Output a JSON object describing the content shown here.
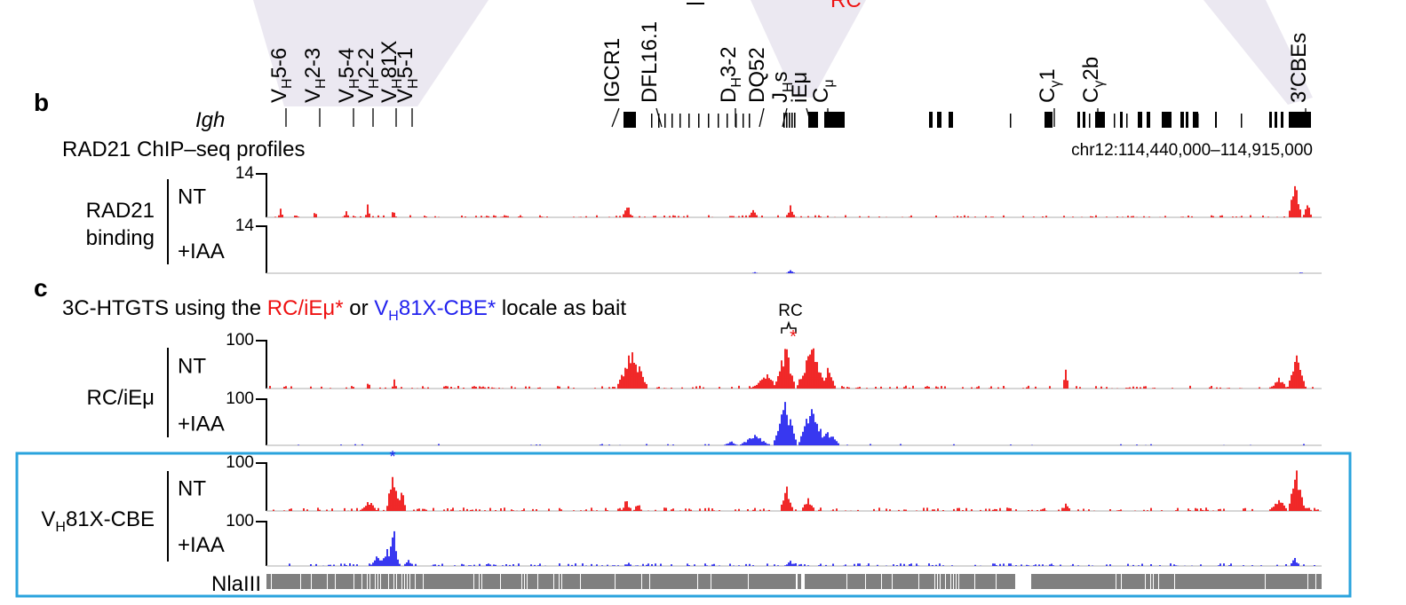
{
  "top_red_text": "RC",
  "panel_b": {
    "letter": "b",
    "locus_label": "Igh",
    "features": [
      {
        "label": "VH5-6",
        "main": "V",
        "sub": "H",
        "rest": "5-6"
      },
      {
        "label": "VH2-3",
        "main": "V",
        "sub": "H",
        "rest": "2-3"
      },
      {
        "label": "VH5-4",
        "main": "V",
        "sub": "H",
        "rest": "5-4"
      },
      {
        "label": "VH2-2",
        "main": "V",
        "sub": "H",
        "rest": "2-2"
      },
      {
        "label": "VH81X",
        "main": "V",
        "sub": "H",
        "rest": "81X"
      },
      {
        "label": "VH5-1",
        "main": "V",
        "sub": "H",
        "rest": "5-1"
      },
      {
        "label": "IGCR1",
        "main": "IGCR1",
        "sub": "",
        "rest": ""
      },
      {
        "label": "DFL16.1",
        "main": "DFL16.1",
        "sub": "",
        "rest": ""
      },
      {
        "label": "DH3-2",
        "main": "D",
        "sub": "H",
        "rest": "3-2"
      },
      {
        "label": "DQ52",
        "main": "DQ52",
        "sub": "",
        "rest": ""
      },
      {
        "label": "JHs",
        "main": "J",
        "sub": "H",
        "rest": "s"
      },
      {
        "label": "iEμ",
        "main": "iEμ",
        "sub": "",
        "rest": ""
      },
      {
        "label": "Cμ",
        "main": "C",
        "sub": "μ",
        "rest": ""
      },
      {
        "label": "Cγ1",
        "main": "C",
        "sub": "γ",
        "rest": "1"
      },
      {
        "label": "Cγ2b",
        "main": "C",
        "sub": "γ",
        "rest": "2b"
      },
      {
        "label": "3'CBEs",
        "main": "3′CBEs",
        "sub": "",
        "rest": ""
      }
    ],
    "section_title": "RAD21 ChIP–seq profiles",
    "coordinates": "chr12:114,440,000–114,915,000",
    "group_label_line1": "RAD21",
    "group_label_line2": "binding",
    "tracks": [
      {
        "label": "NT",
        "max": "14",
        "color": "#ee1111"
      },
      {
        "label": "+IAA",
        "max": "14",
        "color": "#2222ee"
      }
    ]
  },
  "panel_c": {
    "letter": "c",
    "title_pre": "3C-HTGTS using the ",
    "title_red": "RC/iEμ*",
    "title_mid": " or ",
    "title_blue_main": "V",
    "title_blue_sub": "H",
    "title_blue_rest": "81X-CBE*",
    "title_post": " locale as bait",
    "rc_label": "RC",
    "asterisk": "*",
    "groups": [
      {
        "label_main": "RC/iEμ",
        "label_sub": "",
        "label_rest": "",
        "tracks": [
          {
            "label": "NT",
            "max": "100",
            "color": "#ee1111"
          },
          {
            "label": "+IAA",
            "max": "100",
            "color": "#2222ee"
          }
        ]
      },
      {
        "label_main": "V",
        "label_sub": "H",
        "label_rest": "81X-CBE",
        "tracks": [
          {
            "label": "NT",
            "max": "100",
            "color": "#ee1111"
          },
          {
            "label": "+IAA",
            "max": "100",
            "color": "#2222ee"
          }
        ]
      }
    ],
    "nlaiii_label": "NlaIII",
    "box_color": "#2aa3dd"
  }
}
